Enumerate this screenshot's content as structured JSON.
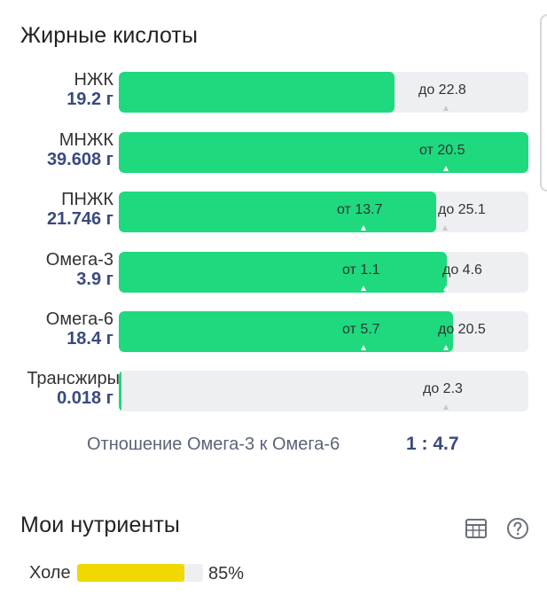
{
  "fatty_acids": {
    "title": "Жирные кислоты",
    "rows": [
      {
        "name": "НЖК",
        "value": "19.2 г",
        "fill_fraction": 0.674,
        "low_label": "",
        "high_label": "до 22.8"
      },
      {
        "name": "МНЖК",
        "value": "39.608 г",
        "fill_fraction": 1.0,
        "low_label": "от 20.5",
        "high_label": ""
      },
      {
        "name": "ПНЖК",
        "value": "21.746 г",
        "fill_fraction": 0.775,
        "low_label": "от 13.7",
        "high_label": "до 25.1"
      },
      {
        "name": "Омега-3",
        "value": "3.9 г",
        "fill_fraction": 0.8,
        "low_label": "от 1.1",
        "high_label": "до 4.6"
      },
      {
        "name": "Омега-6",
        "value": "18.4 г",
        "fill_fraction": 0.816,
        "low_label": "от 5.7",
        "high_label": "до 20.5"
      },
      {
        "name": "Трансжиры",
        "value": "0.018 г",
        "fill_fraction": 0.006,
        "low_label": "",
        "high_label": "до 2.3"
      }
    ],
    "ratio_label": "Отношение Омега-3 к Омега-6",
    "ratio_value": "1 : 4.7"
  },
  "my_nutrients": {
    "title": "Мои нутриенты",
    "table_icon": "table-icon",
    "help_icon": "help-circle-icon",
    "items": [
      {
        "name": "Холе",
        "percent_label": "85%",
        "fill_fraction": 0.85
      }
    ]
  },
  "colors": {
    "fill_green": "#1ed97e",
    "track_grey": "#eeeff2",
    "value_blue": "#3a4a80",
    "nutrient_yellow": "#f0d800"
  }
}
